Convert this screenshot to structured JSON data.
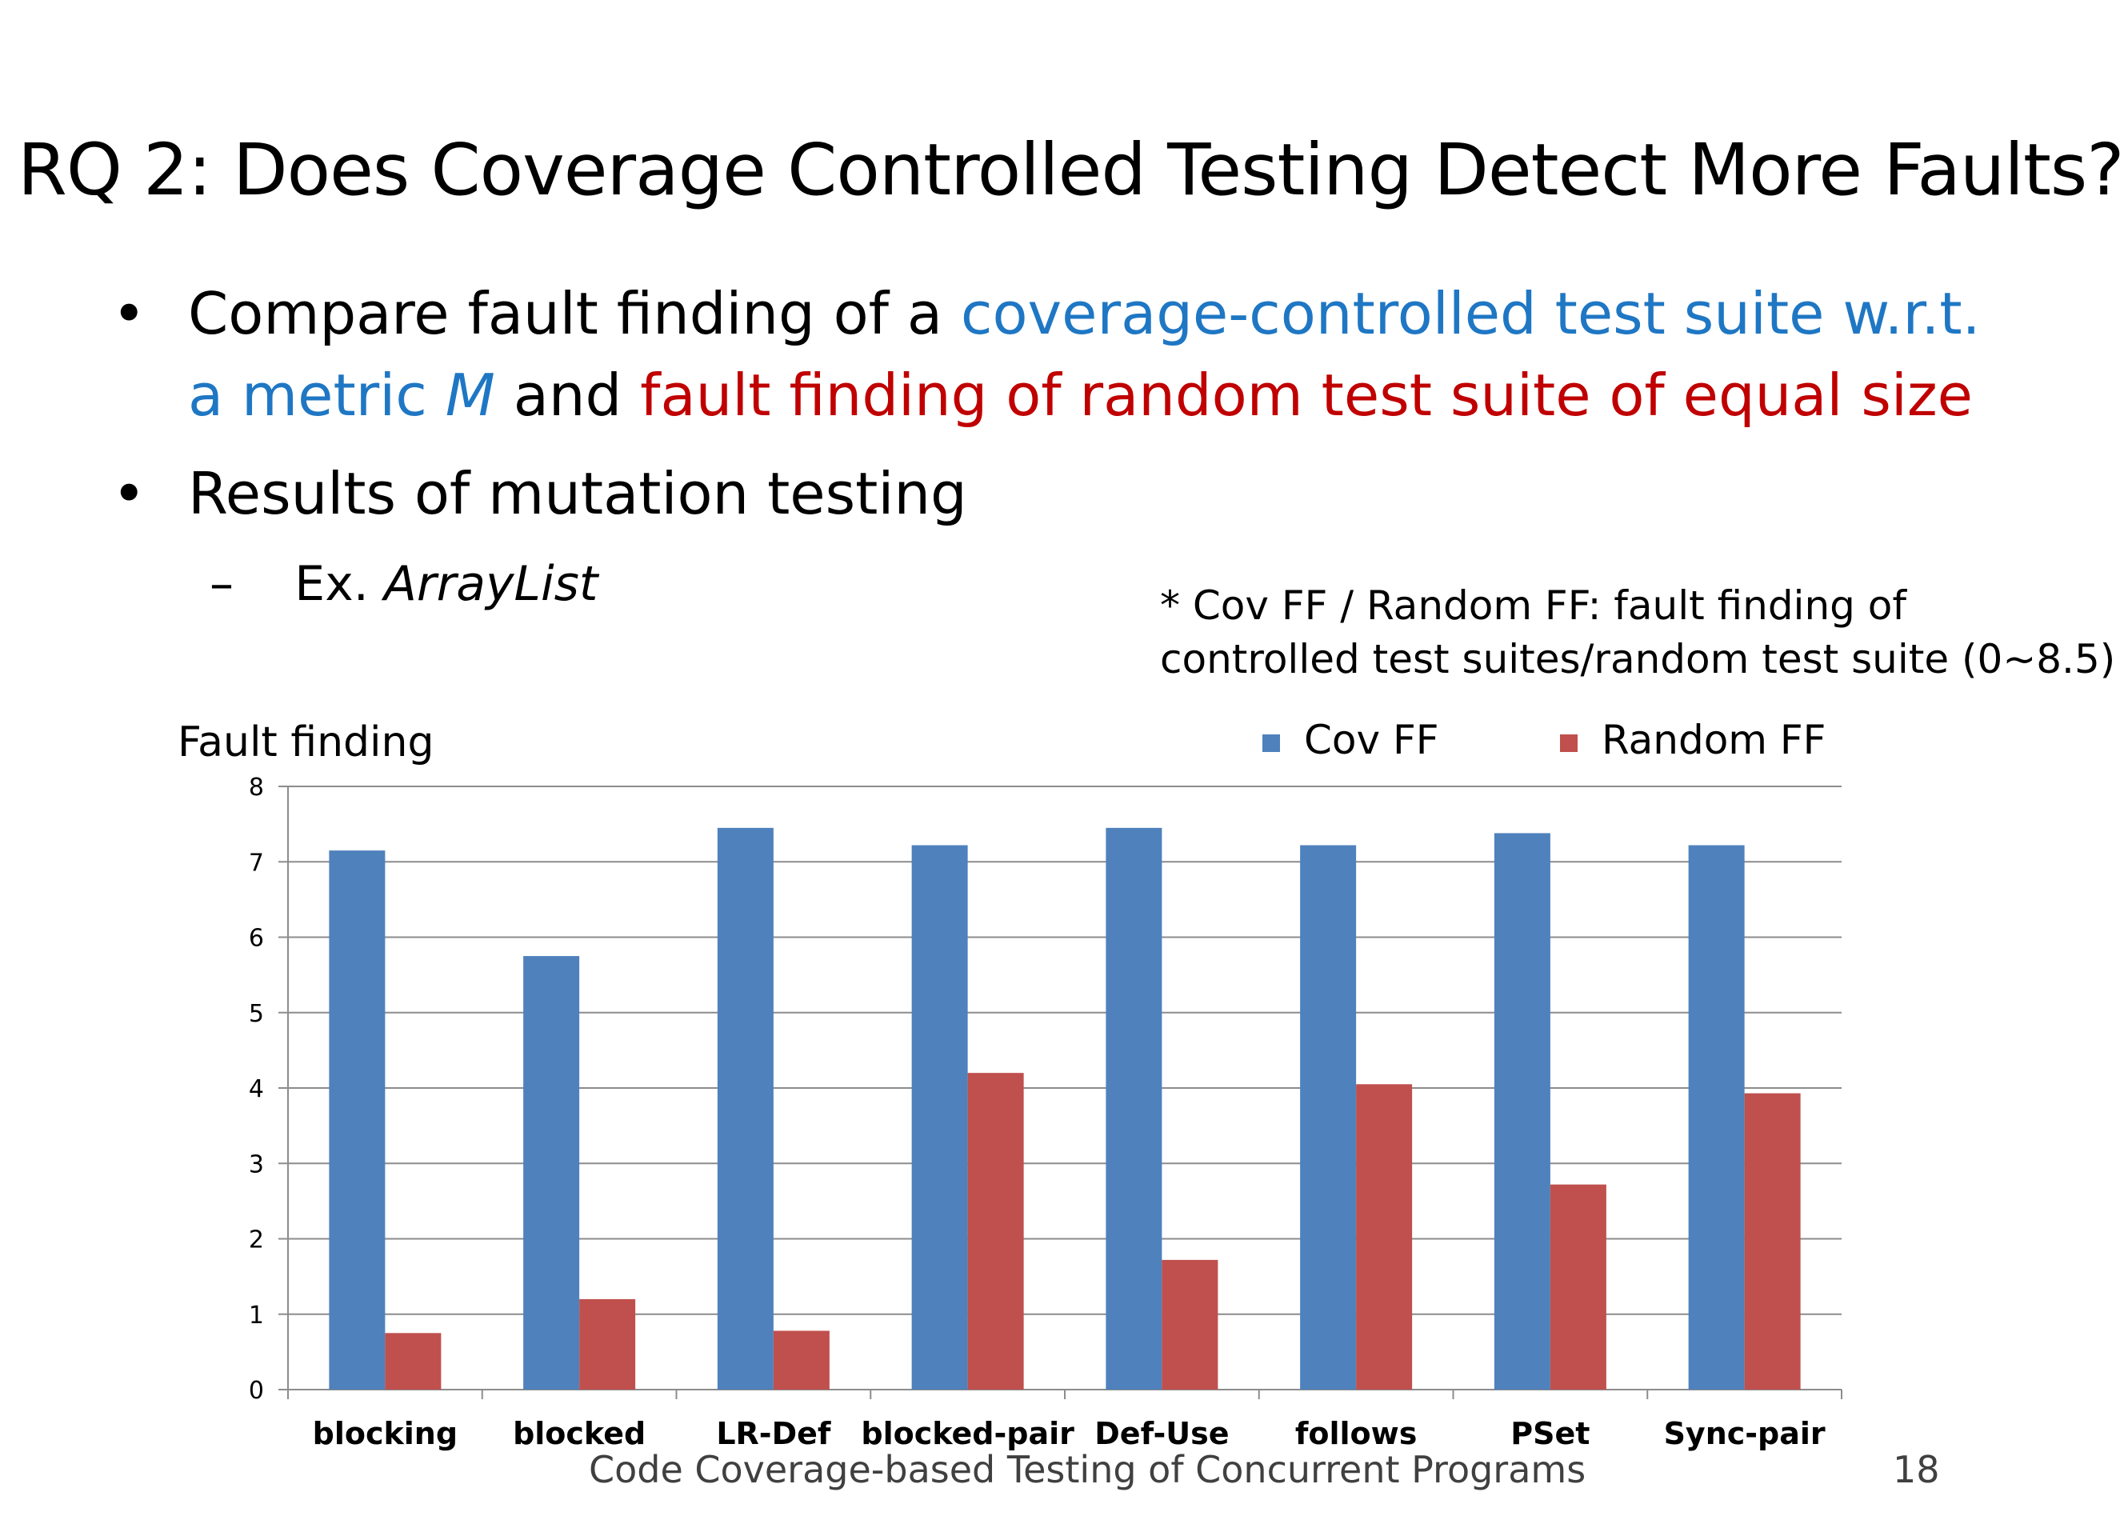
{
  "slide": {
    "title": "RQ 2: Does Coverage Controlled Testing Detect More Faults?",
    "bullet1": {
      "part1": "Compare fault finding of a ",
      "part2": "coverage-controlled test suite w.r.t.",
      "part3": "a metric ",
      "part4": "M",
      "part5": " and ",
      "part6": "fault finding of random test suite of equal size"
    },
    "bullet2": "Results of mutation testing",
    "sub_dash": "–",
    "sub_prefix": "Ex. ",
    "sub_italic": "ArrayList",
    "note_line1": "* Cov FF / Random FF:    fault finding of",
    "note_line2": "controlled test suites/random test suite (0~8.5)",
    "footer": "Code Coverage-based Testing of Concurrent Programs",
    "page_number": "18",
    "bullet_char": "•"
  },
  "chart_data": {
    "type": "bar",
    "ylabel": "Fault finding",
    "xlabel": "",
    "ylim": [
      0,
      8
    ],
    "yticks": [
      "0",
      "1",
      "2",
      "3",
      "4",
      "5",
      "6",
      "7",
      "8"
    ],
    "grid": true,
    "legend_position": "top-right",
    "categories": [
      "blocking",
      "blocked",
      "LR-Def",
      "blocked-pair",
      "Def-Use",
      "follows",
      "PSet",
      "Sync-pair"
    ],
    "series": [
      {
        "name": "Cov FF",
        "color": "#4f81bd",
        "values": [
          7.15,
          5.75,
          7.45,
          7.22,
          7.45,
          7.22,
          7.38,
          7.22
        ]
      },
      {
        "name": "Random FF",
        "color": "#c0504d",
        "values": [
          0.75,
          1.2,
          0.78,
          4.2,
          1.72,
          4.05,
          2.72,
          3.93
        ]
      }
    ]
  }
}
